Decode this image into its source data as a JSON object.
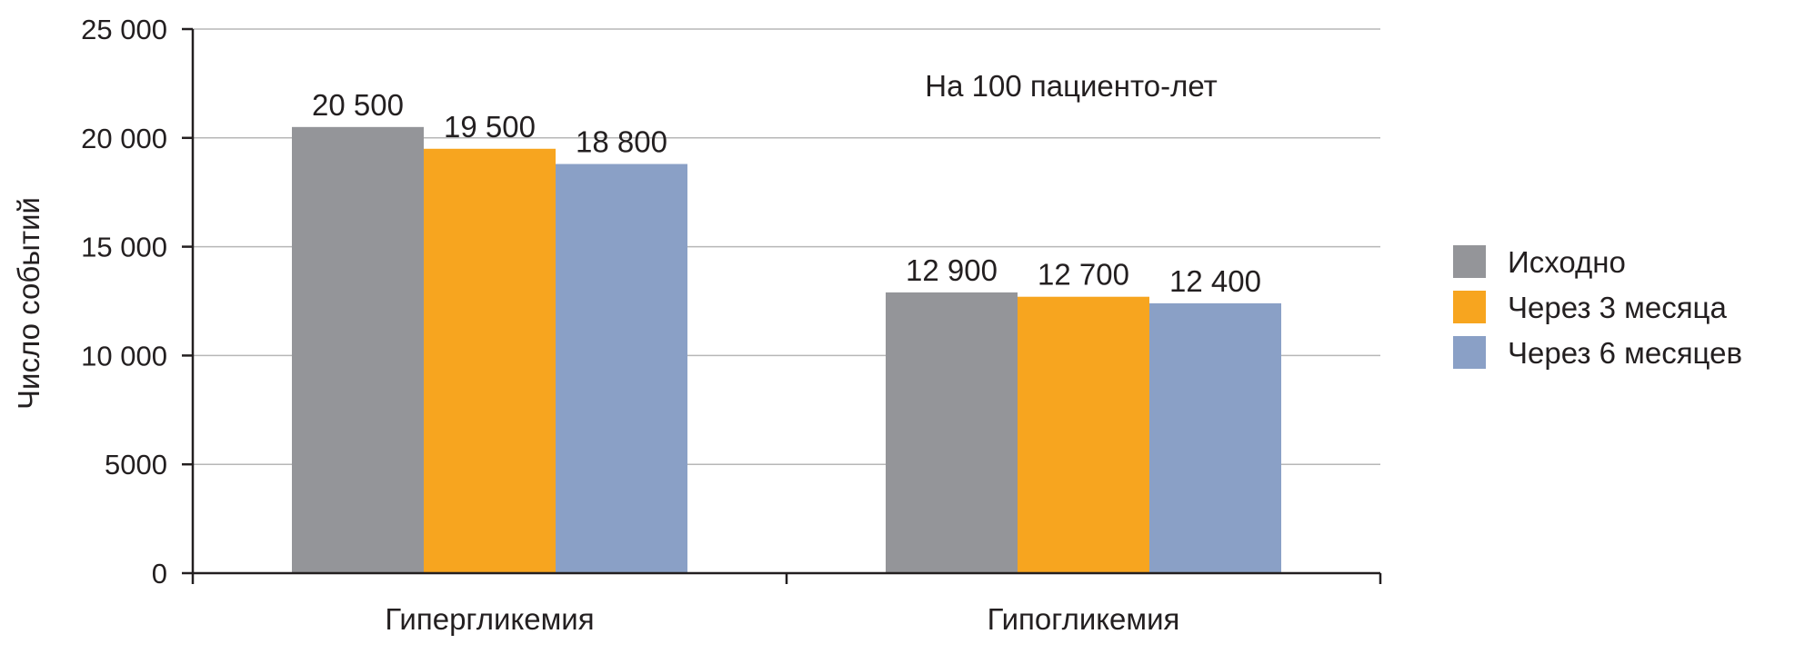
{
  "chart_data": {
    "type": "bar",
    "title": "",
    "xlabel": "",
    "ylabel": "Число событий",
    "annotation": "На 100 пациенто-лет",
    "categories": [
      "Гипергликемия",
      "Гипогликемия"
    ],
    "series": [
      {
        "name": "Исходно",
        "color": "#949599",
        "values": [
          20500,
          12900
        ],
        "labels": [
          "20 500",
          "12 900"
        ]
      },
      {
        "name": "Через 3 месяца",
        "color": "#f7a51f",
        "values": [
          19500,
          12700
        ],
        "labels": [
          "19 500",
          "12 700"
        ]
      },
      {
        "name": "Через 6 месяцев",
        "color": "#8aa0c6",
        "values": [
          18800,
          12400
        ],
        "labels": [
          "18 800",
          "12 400"
        ]
      }
    ],
    "ylim": [
      0,
      25000
    ],
    "yticks": [
      0,
      5000,
      10000,
      15000,
      20000,
      25000
    ],
    "ytick_labels": [
      "0",
      "5000",
      "10 000",
      "15 000",
      "20 000",
      "25 000"
    ],
    "grid": true,
    "legend_position": "right"
  }
}
